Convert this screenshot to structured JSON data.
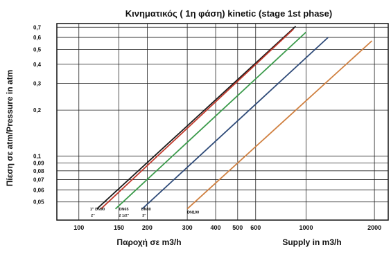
{
  "chart_data": {
    "type": "line",
    "title": "Κινηματικός ( 1η φάση)  kinetic (stage 1st phase)",
    "ylabel": "Πίεση σε atm/Pressure in atm",
    "xlabel_left": "Παροχή σε m3/h",
    "xlabel_right": "Supply in m3/h",
    "x_scale": "log",
    "y_scale": "log",
    "xlim": [
      80,
      2300
    ],
    "ylim": [
      0.038,
      0.74
    ],
    "grid": true,
    "x_ticks": [
      {
        "value": 100,
        "label": "100"
      },
      {
        "value": 150,
        "label": "150"
      },
      {
        "value": 200,
        "label": "200"
      },
      {
        "value": 300,
        "label": "300"
      },
      {
        "value": 400,
        "label": "400"
      },
      {
        "value": 500,
        "label": "500"
      },
      {
        "value": 600,
        "label": "600"
      },
      {
        "value": 1000,
        "label": "1000"
      },
      {
        "value": 2000,
        "label": "2000"
      }
    ],
    "y_ticks": [
      {
        "value": 0.05,
        "label": "0,05"
      },
      {
        "value": 0.06,
        "label": "0,06"
      },
      {
        "value": 0.07,
        "label": "0,07"
      },
      {
        "value": 0.08,
        "label": "0,08"
      },
      {
        "value": 0.09,
        "label": "0,09"
      },
      {
        "value": 0.1,
        "label": "0,1"
      },
      {
        "value": 0.2,
        "label": "0,2"
      },
      {
        "value": 0.3,
        "label": "0,3"
      },
      {
        "value": 0.4,
        "label": "0,4"
      },
      {
        "value": 0.5,
        "label": "0,5"
      },
      {
        "value": 0.6,
        "label": "0,6"
      },
      {
        "value": 0.7,
        "label": "0,7"
      }
    ],
    "series": [
      {
        "color": "#1a1a1a",
        "x": [
          120,
          900
        ],
        "y": [
          0.045,
          0.71
        ]
      },
      {
        "color": "#c0392b",
        "x": [
          125,
          880
        ],
        "y": [
          0.045,
          0.68
        ]
      },
      {
        "color": "#3a9a4a",
        "x": [
          145,
          1000
        ],
        "y": [
          0.045,
          0.65
        ]
      },
      {
        "color": "#2e4a78",
        "x": [
          190,
          1250
        ],
        "y": [
          0.045,
          0.6
        ]
      },
      {
        "color": "#d08040",
        "x": [
          300,
          1950
        ],
        "y": [
          0.045,
          0.57
        ]
      }
    ],
    "annotations": [
      {
        "text": "1\" DN90",
        "x": 112,
        "y": 0.044
      },
      {
        "text": "2\"",
        "x": 113,
        "y": 0.04
      },
      {
        "text": "DN65",
        "x": 150,
        "y": 0.044
      },
      {
        "text": "2 1/2\"",
        "x": 150,
        "y": 0.04
      },
      {
        "text": "DN80",
        "x": 188,
        "y": 0.044
      },
      {
        "text": "3\"",
        "x": 190,
        "y": 0.04
      },
      {
        "text": "DN100",
        "x": 300,
        "y": 0.042
      }
    ]
  }
}
